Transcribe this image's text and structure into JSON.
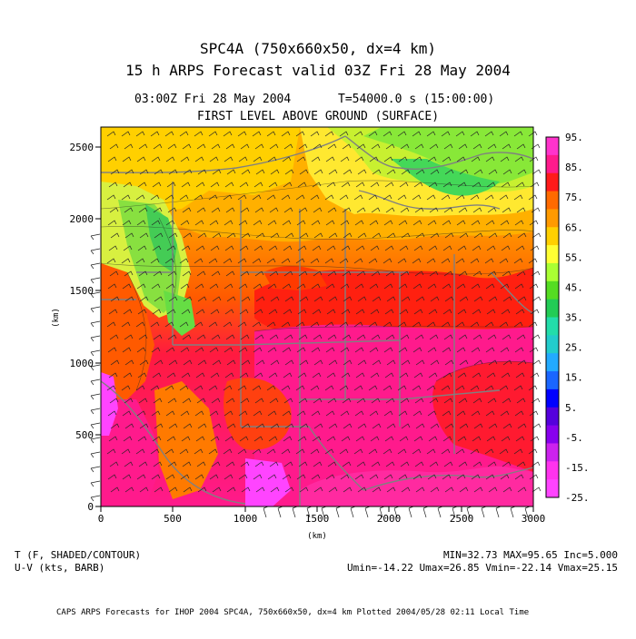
{
  "header": {
    "title_line1": "SPC4A (750x660x50, dx=4 km)",
    "title_line2": "15 h ARPS Forecast valid 03Z Fri 28 May 2004",
    "time_left": "03:00Z Fri 28 May 2004",
    "time_right": "T=54000.0 s (15:00:00)",
    "level": "FIRST LEVEL ABOVE GROUND (SURFACE)"
  },
  "axes": {
    "x_label": "(km)",
    "y_label": "(km)",
    "x_ticks": [
      "0",
      "500",
      "1000",
      "1500",
      "2000",
      "2500",
      "3000"
    ],
    "y_ticks": [
      "0",
      "500",
      "1000",
      "1500",
      "2000",
      "2500"
    ]
  },
  "colorbar": {
    "labels": [
      "95.",
      "85.",
      "75.",
      "65.",
      "55.",
      "45.",
      "35.",
      "25.",
      "15.",
      "5.",
      "-5.",
      "-15.",
      "-25."
    ],
    "colors": [
      "#ff33cc",
      "#ff1a8c",
      "#ff1a1a",
      "#ff6a00",
      "#ff9a00",
      "#ffd000",
      "#ffff33",
      "#aaff33",
      "#55dd22",
      "#22cc55",
      "#22ddaa",
      "#22cccc",
      "#22aaff",
      "#1a66ff",
      "#0000ff",
      "#5500dd",
      "#8800ee",
      "#cc22ee",
      "#ff33ee",
      "#ff44ff"
    ]
  },
  "footer": {
    "left_line1": "T (F, SHADED/CONTOUR)",
    "left_line2": "U-V (kts, BARB)",
    "right_line1": "MIN=32.73 MAX=95.65 Inc=5.000",
    "right_line2": "Umin=-14.22 Umax=26.85 Vmin=-22.14 Vmax=25.15",
    "credit": "CAPS ARPS Forecasts for IHOP 2004  SPC4A, 750x660x50, dx=4 km  Plotted 2004/05/28 02:11 Local Time"
  }
}
